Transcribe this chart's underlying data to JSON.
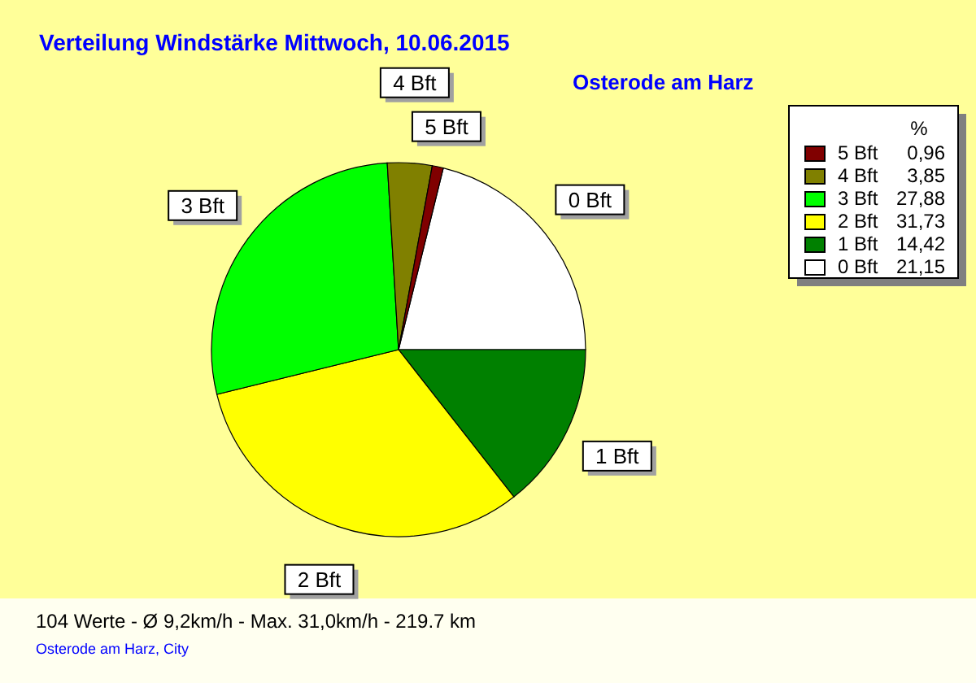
{
  "chart_data": {
    "type": "pie",
    "title": "Verteilung Windstärke  Mittwoch, 10.06.2015",
    "subtitle": "Osterode am Harz",
    "categories": [
      "5 Bft",
      "4 Bft",
      "3 Bft",
      "2 Bft",
      "1 Bft",
      "0 Bft"
    ],
    "values": [
      0.96,
      3.85,
      27.88,
      31.73,
      14.42,
      21.15
    ],
    "colors": [
      "#800000",
      "#808000",
      "#00ff00",
      "#ffff00",
      "#008000",
      "#ffffff"
    ],
    "value_labels": [
      "0,96",
      "3,85",
      "27,88",
      "31,73",
      "14,42",
      "21,15"
    ],
    "legend": "top right",
    "legend_title": "%",
    "annotations": [
      "104 Werte   -   Ø 9,2km/h  -  Max. 31,0km/h   -   219.7 km",
      "Osterode am Harz, City"
    ]
  }
}
